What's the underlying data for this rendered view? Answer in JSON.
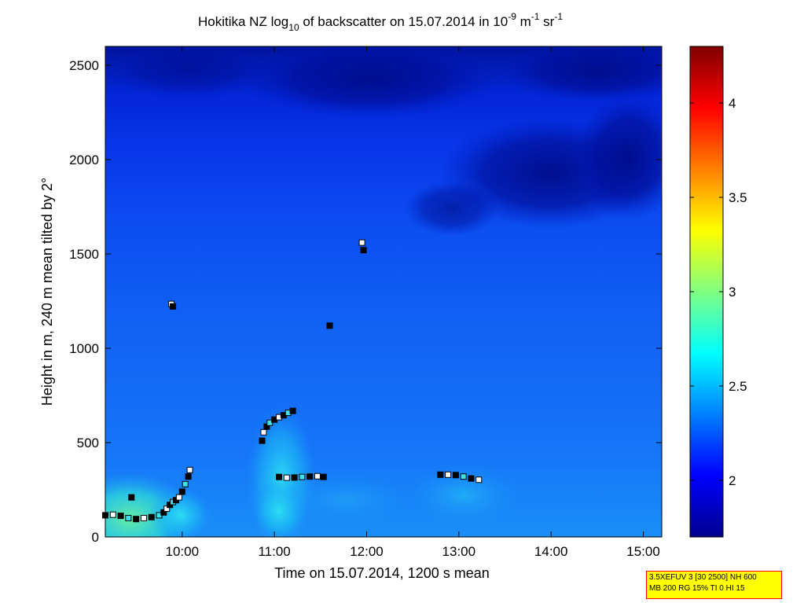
{
  "chart_data": {
    "type": "heatmap",
    "title": "Hokitika NZ log10 of backscatter on 15.07.2014 in 10-9 m-1 sr-1",
    "title_parts": {
      "prefix": "Hokitika NZ log",
      "sub": "10",
      "mid": " of backscatter on 15.07.2014 in 10",
      "sup1": "-9",
      "unit1": " m",
      "sup2": "-1",
      "unit2": " sr",
      "sup3": "-1"
    },
    "xlabel": "Time on 15.07.2014, 1200 s mean",
    "ylabel": "Height in m, 240 m mean tilted by 2°",
    "xlim": [
      "09:10",
      "15:12"
    ],
    "ylim": [
      0,
      2600
    ],
    "x_ticks": [
      "10:00",
      "11:00",
      "12:00",
      "13:00",
      "14:00",
      "15:00"
    ],
    "y_ticks": [
      "0",
      "500",
      "1000",
      "1500",
      "2000",
      "2500"
    ],
    "colorbar": {
      "range": [
        1.7,
        4.3
      ],
      "ticks": [
        "2",
        "2.5",
        "3",
        "3.5",
        "4"
      ],
      "colormap": "jet"
    },
    "markers": [
      {
        "name": "cloud base segment 1",
        "points": [
          [
            "09:10",
            115
          ],
          [
            "09:15",
            118
          ],
          [
            "09:20",
            112
          ],
          [
            "09:25",
            100
          ],
          [
            "09:30",
            95
          ],
          [
            "09:35",
            100
          ],
          [
            "09:40",
            105
          ],
          [
            "09:45",
            115
          ],
          [
            "09:48",
            130
          ],
          [
            "09:50",
            150
          ],
          [
            "09:52",
            170
          ],
          [
            "09:54",
            185
          ],
          [
            "09:56",
            195
          ],
          [
            "09:58",
            210
          ],
          [
            "10:00",
            240
          ],
          [
            "10:02",
            280
          ],
          [
            "10:04",
            320
          ],
          [
            "10:05",
            355
          ]
        ]
      },
      {
        "name": "isolated 1",
        "points": [
          [
            "09:27",
            210
          ],
          [
            "09:53",
            1235
          ],
          [
            "09:54",
            1222
          ]
        ]
      },
      {
        "name": "cloud base segment 2",
        "points": [
          [
            "10:52",
            510
          ],
          [
            "10:53",
            555
          ],
          [
            "10:55",
            585
          ],
          [
            "10:57",
            605
          ],
          [
            "11:00",
            622
          ],
          [
            "11:03",
            635
          ],
          [
            "11:06",
            645
          ],
          [
            "11:09",
            658
          ],
          [
            "11:12",
            668
          ]
        ]
      },
      {
        "name": "cloud base segment 3",
        "points": [
          [
            "11:03",
            318
          ],
          [
            "11:08",
            314
          ],
          [
            "11:13",
            315
          ],
          [
            "11:18",
            318
          ],
          [
            "11:23",
            320
          ],
          [
            "11:28",
            322
          ],
          [
            "11:32",
            318
          ]
        ]
      },
      {
        "name": "isolated 2",
        "points": [
          [
            "11:36",
            1120
          ],
          [
            "11:57",
            1560
          ],
          [
            "11:58",
            1520
          ]
        ]
      },
      {
        "name": "cloud base segment 4",
        "points": [
          [
            "12:48",
            330
          ],
          [
            "12:53",
            330
          ],
          [
            "12:58",
            328
          ],
          [
            "13:03",
            320
          ],
          [
            "13:08",
            310
          ],
          [
            "13:13",
            303
          ]
        ]
      }
    ]
  },
  "info_box": {
    "line1": "3.5XEFUV 3 [30 2500] NH 600",
    "line2": "MB 200 RG 15% TI 0 HI 15"
  }
}
